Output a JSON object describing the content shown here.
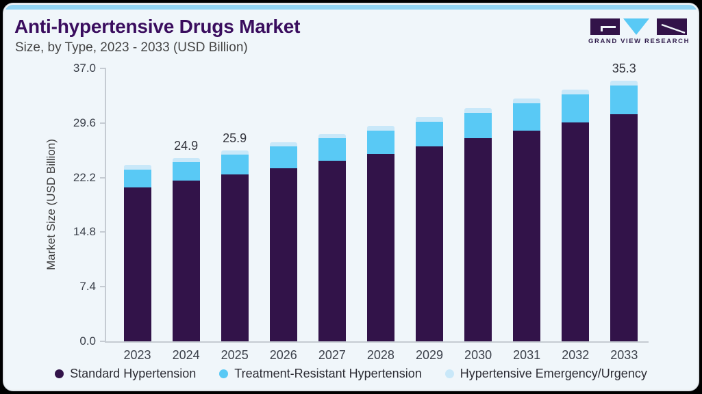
{
  "header": {
    "title": "Anti-hypertensive Drugs Market",
    "subtitle": "Size, by Type, 2023 - 2033 (USD Billion)",
    "logo_text": "GRAND VIEW RESEARCH"
  },
  "colors": {
    "accent_strip": "#92d4f2",
    "title_purple": "#3a0d5e",
    "card_background": "#f0f6fa",
    "axis_line": "#c5cbd2",
    "standard_hypertension": "#321349",
    "treatment_resistant": "#59c9f5",
    "emergency_urgency": "#c9e8f9",
    "logo_purple": "#321349",
    "logo_cyan": "#59c9f5"
  },
  "chart_data": {
    "type": "bar",
    "stacked": true,
    "title": "Anti-hypertensive Drugs Market Size, by Type, 2023 - 2033 (USD Billion)",
    "xlabel": "",
    "ylabel": "Market Size (USD Billion)",
    "ylim": [
      0,
      37
    ],
    "grid": false,
    "legend_position": "bottom",
    "yticks": [
      {
        "label": "0.0",
        "value": 0.0
      },
      {
        "label": "7.4",
        "value": 7.4
      },
      {
        "label": "14.8",
        "value": 14.8
      },
      {
        "label": "22.2",
        "value": 22.2
      },
      {
        "label": "29.6",
        "value": 29.6
      },
      {
        "label": "37.0",
        "value": 37.0
      }
    ],
    "categories": [
      "2023",
      "2024",
      "2025",
      "2026",
      "2027",
      "2028",
      "2029",
      "2030",
      "2031",
      "2032",
      "2033"
    ],
    "series": [
      {
        "name": "Standard Hypertension",
        "color": "#321349",
        "values": [
          20.9,
          21.8,
          22.6,
          23.5,
          24.5,
          25.4,
          26.4,
          27.5,
          28.6,
          29.7,
          30.8
        ]
      },
      {
        "name": "Treatment-Resistant Hypertension",
        "color": "#59c9f5",
        "values": [
          2.4,
          2.5,
          2.7,
          2.9,
          3.0,
          3.2,
          3.4,
          3.5,
          3.7,
          3.8,
          3.9
        ]
      },
      {
        "name": "Hypertensive Emergency/Urgency",
        "color": "#c9e8f9",
        "values": [
          0.6,
          0.6,
          0.6,
          0.6,
          0.6,
          0.6,
          0.6,
          0.6,
          0.6,
          0.6,
          0.6
        ]
      }
    ],
    "totals": [
      23.9,
      24.9,
      25.9,
      27.0,
      28.1,
      29.2,
      30.4,
      31.6,
      32.9,
      34.1,
      35.3
    ],
    "bar_total_labels": [
      "",
      "24.9",
      "25.9",
      "",
      "",
      "",
      "",
      "",
      "",
      "",
      "35.3"
    ]
  }
}
